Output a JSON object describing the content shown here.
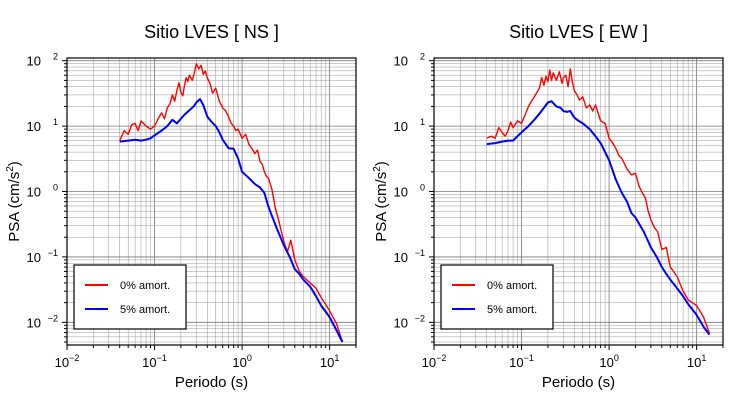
{
  "figure": {
    "axis_labels": {
      "x": "Periodo (s)",
      "y_main": "PSA (cm/s",
      "y_sup": "2",
      "y_end": ")"
    },
    "x_ticks": [
      {
        "base": "10",
        "exp": "−2",
        "value": 0.01
      },
      {
        "base": "10",
        "exp": "−1",
        "value": 0.1
      },
      {
        "base": "10",
        "exp": "0",
        "value": 1
      },
      {
        "base": "10",
        "exp": "1",
        "value": 10
      }
    ],
    "y_ticks": [
      {
        "base": "10",
        "exp": "−2",
        "value": 0.01
      },
      {
        "base": "10",
        "exp": "−1",
        "value": 0.1
      },
      {
        "base": "10",
        "exp": "0",
        "value": 1
      },
      {
        "base": "10",
        "exp": "1",
        "value": 10
      },
      {
        "base": "10",
        "exp": "2",
        "value": 100
      }
    ]
  },
  "chart_data": [
    {
      "type": "line",
      "title": "Sitio LVES [ NS ]",
      "xlabel": "Periodo (s)",
      "ylabel": "PSA (cm/s2)",
      "xscale": "log",
      "yscale": "log",
      "xlim": [
        0.01,
        20
      ],
      "ylim": [
        0.0045,
        110
      ],
      "grid": true,
      "legend_position": "bottom-left",
      "series": [
        {
          "name": "0% amort.",
          "color": "#ff0000",
          "x": [
            0.04,
            0.045,
            0.05,
            0.055,
            0.06,
            0.065,
            0.07,
            0.08,
            0.09,
            0.1,
            0.11,
            0.12,
            0.13,
            0.14,
            0.15,
            0.16,
            0.17,
            0.18,
            0.19,
            0.2,
            0.21,
            0.22,
            0.23,
            0.24,
            0.25,
            0.27,
            0.29,
            0.3,
            0.32,
            0.34,
            0.36,
            0.38,
            0.4,
            0.43,
            0.46,
            0.5,
            0.55,
            0.6,
            0.65,
            0.7,
            0.75,
            0.8,
            0.85,
            0.9,
            1.0,
            1.1,
            1.2,
            1.3,
            1.4,
            1.5,
            1.6,
            1.7,
            1.8,
            1.9,
            2.0,
            2.2,
            2.4,
            2.6,
            2.8,
            3.0,
            3.3,
            3.6,
            4.0,
            4.5,
            5.0,
            6.0,
            7.0,
            8.0,
            10.0,
            12.0,
            14.0
          ],
          "values": [
            6,
            8.5,
            7.5,
            10.5,
            11,
            8.5,
            12,
            10,
            9,
            10,
            13,
            16,
            13,
            19,
            22,
            30,
            24,
            35,
            46,
            33,
            29,
            42,
            55,
            48,
            60,
            50,
            72,
            90,
            75,
            85,
            62,
            70,
            55,
            45,
            32,
            38,
            24,
            19,
            17,
            14,
            11,
            10,
            8.5,
            9,
            6.5,
            7.5,
            5.2,
            4.5,
            3.8,
            4.3,
            2.9,
            2.6,
            2.0,
            1.7,
            1.6,
            1.05,
            0.55,
            0.38,
            0.25,
            0.17,
            0.12,
            0.18,
            0.09,
            0.06,
            0.05,
            0.04,
            0.033,
            0.024,
            0.015,
            0.0095,
            0.005
          ]
        },
        {
          "name": "5% amort.",
          "color": "#0000ff",
          "x": [
            0.04,
            0.05,
            0.06,
            0.07,
            0.08,
            0.09,
            0.1,
            0.12,
            0.14,
            0.16,
            0.18,
            0.2,
            0.22,
            0.25,
            0.28,
            0.3,
            0.33,
            0.36,
            0.4,
            0.45,
            0.5,
            0.55,
            0.6,
            0.7,
            0.8,
            0.9,
            1.0,
            1.2,
            1.4,
            1.6,
            1.8,
            2.0,
            2.5,
            3.0,
            3.5,
            4.0,
            4.5,
            5.0,
            6.0,
            7.0,
            8.0,
            10.0,
            12.0,
            14.0
          ],
          "values": [
            5.8,
            6.0,
            6.2,
            6.0,
            6.2,
            6.5,
            7.2,
            8.5,
            10.0,
            12.5,
            11.0,
            13.0,
            15.0,
            17.5,
            20.0,
            23.0,
            26.0,
            21.0,
            14.0,
            11.5,
            10.0,
            8.0,
            6.2,
            4.6,
            4.5,
            3.2,
            2.0,
            1.6,
            1.3,
            1.15,
            0.95,
            0.58,
            0.27,
            0.15,
            0.1,
            0.065,
            0.055,
            0.045,
            0.035,
            0.025,
            0.018,
            0.012,
            0.0075,
            0.005
          ]
        }
      ]
    },
    {
      "type": "line",
      "title": "Sitio LVES [ EW ]",
      "xlabel": "Periodo (s)",
      "ylabel": "PSA (cm/s2)",
      "xscale": "log",
      "yscale": "log",
      "xlim": [
        0.01,
        20
      ],
      "ylim": [
        0.0045,
        110
      ],
      "grid": true,
      "legend_position": "bottom-left",
      "series": [
        {
          "name": "0% amort.",
          "color": "#ff0000",
          "x": [
            0.04,
            0.045,
            0.05,
            0.055,
            0.06,
            0.065,
            0.07,
            0.075,
            0.08,
            0.09,
            0.1,
            0.11,
            0.12,
            0.13,
            0.14,
            0.15,
            0.16,
            0.17,
            0.18,
            0.19,
            0.2,
            0.21,
            0.22,
            0.23,
            0.25,
            0.27,
            0.29,
            0.3,
            0.32,
            0.34,
            0.36,
            0.38,
            0.4,
            0.43,
            0.46,
            0.5,
            0.55,
            0.6,
            0.65,
            0.7,
            0.8,
            0.9,
            1.0,
            1.1,
            1.2,
            1.3,
            1.4,
            1.6,
            1.8,
            2.0,
            2.2,
            2.4,
            2.6,
            2.8,
            3.0,
            3.3,
            3.6,
            4.0,
            4.5,
            5.0,
            6.0,
            7.0,
            8.0,
            10.0,
            12.0,
            14.0
          ],
          "values": [
            6.5,
            7.0,
            6.5,
            9.5,
            8.0,
            7.0,
            8.5,
            11.5,
            9.5,
            12.0,
            11.0,
            15.0,
            20.0,
            24.0,
            28.0,
            33.0,
            38.0,
            55.0,
            42.0,
            58.0,
            48.0,
            72.0,
            50.0,
            65.0,
            50.0,
            68.0,
            45.0,
            55.0,
            60.0,
            40.0,
            75.0,
            48.0,
            35.0,
            30.0,
            25.0,
            28.0,
            19.0,
            21.0,
            17.0,
            21.0,
            12.0,
            11.0,
            6.5,
            5.5,
            4.5,
            3.5,
            3.2,
            2.2,
            1.8,
            1.9,
            1.2,
            0.95,
            0.8,
            0.5,
            0.37,
            0.28,
            0.24,
            0.13,
            0.14,
            0.07,
            0.05,
            0.03,
            0.022,
            0.018,
            0.012,
            0.0068
          ]
        },
        {
          "name": "5% amort.",
          "color": "#0000ff",
          "x": [
            0.04,
            0.05,
            0.06,
            0.07,
            0.08,
            0.09,
            0.1,
            0.12,
            0.14,
            0.16,
            0.18,
            0.2,
            0.22,
            0.25,
            0.28,
            0.3,
            0.33,
            0.36,
            0.4,
            0.45,
            0.5,
            0.6,
            0.7,
            0.8,
            0.9,
            1.0,
            1.2,
            1.4,
            1.6,
            1.8,
            2.0,
            2.5,
            3.0,
            3.5,
            4.0,
            4.5,
            5.0,
            6.0,
            7.0,
            8.0,
            10.0,
            12.0,
            14.0
          ],
          "values": [
            5.3,
            5.5,
            5.8,
            6.0,
            6.0,
            7.0,
            8.0,
            10.0,
            12.5,
            15.5,
            19.0,
            23.0,
            24.0,
            20.0,
            19.0,
            17.0,
            16.5,
            17.0,
            13.5,
            12.0,
            11.0,
            9.0,
            7.0,
            5.5,
            4.0,
            3.0,
            1.5,
            0.95,
            0.7,
            0.47,
            0.4,
            0.24,
            0.14,
            0.1,
            0.07,
            0.055,
            0.045,
            0.033,
            0.025,
            0.019,
            0.013,
            0.0085,
            0.0065
          ]
        }
      ]
    }
  ]
}
